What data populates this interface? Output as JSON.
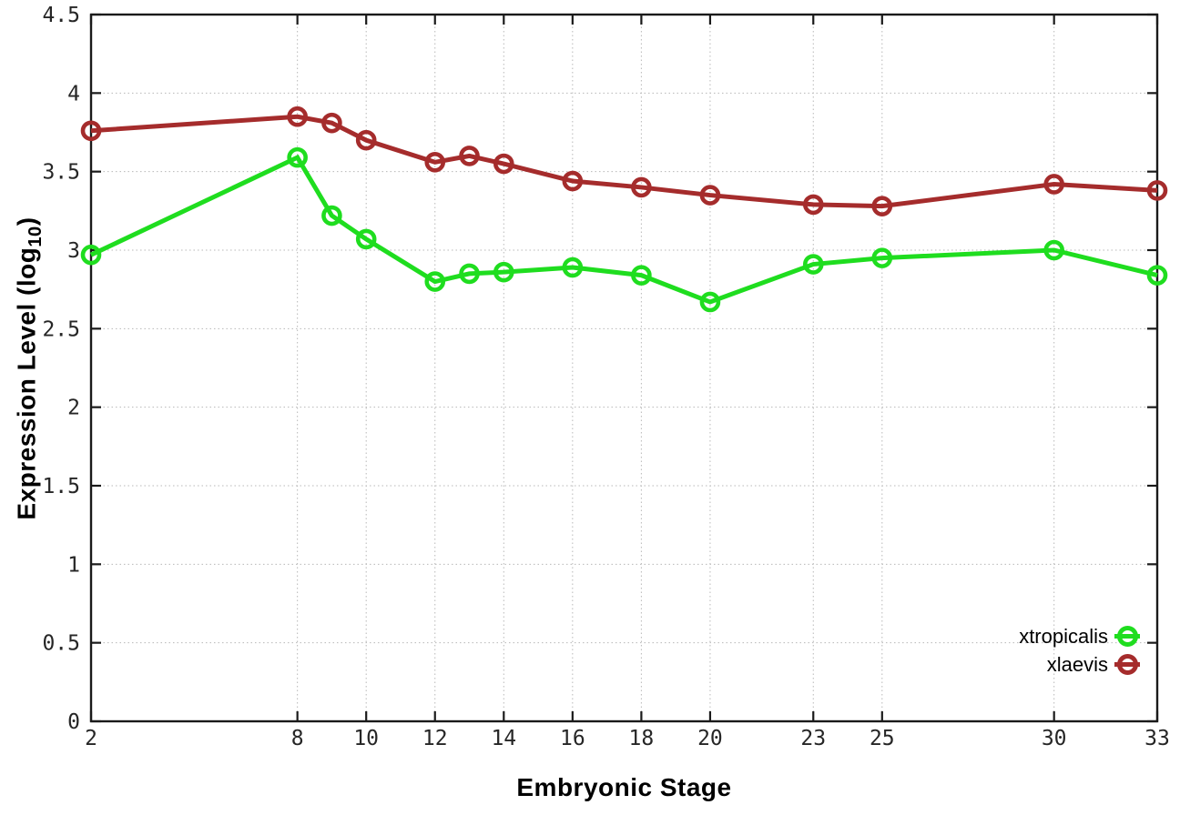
{
  "chart_data": {
    "type": "line",
    "xlabel": "Embryonic Stage",
    "ylabel": {
      "prefix": "Expression Level (log",
      "sub": "10",
      "suffix": ")"
    },
    "ylabel_text": "Expression Level (log10)",
    "xlim": [
      2,
      33
    ],
    "ylim": [
      0,
      4.5
    ],
    "x_ticks": [
      2,
      8,
      10,
      12,
      14,
      16,
      18,
      20,
      23,
      25,
      30,
      33
    ],
    "y_ticks": [
      0,
      0.5,
      1,
      1.5,
      2,
      2.5,
      3,
      3.5,
      4,
      4.5
    ],
    "grid": true,
    "grid_style": "dotted",
    "legend_position": "bottom-right-inside",
    "marker": "open-circle",
    "x": [
      2,
      8,
      9,
      10,
      12,
      13,
      14,
      16,
      18,
      20,
      23,
      25,
      30,
      33
    ],
    "series": [
      {
        "name": "xtropicalis",
        "color": "#1fdd1f",
        "values": [
          2.97,
          3.59,
          3.22,
          3.07,
          2.8,
          2.85,
          2.86,
          2.89,
          2.84,
          2.67,
          2.91,
          2.95,
          3.0,
          2.84
        ]
      },
      {
        "name": "xlaevis",
        "color": "#a52c2c",
        "values": [
          3.76,
          3.85,
          3.81,
          3.7,
          3.56,
          3.6,
          3.55,
          3.44,
          3.4,
          3.35,
          3.29,
          3.28,
          3.42,
          3.38
        ]
      }
    ],
    "axis_color": "#1a1a1a",
    "grid_color": "#b8b8b8",
    "background_color": "#ffffff"
  }
}
